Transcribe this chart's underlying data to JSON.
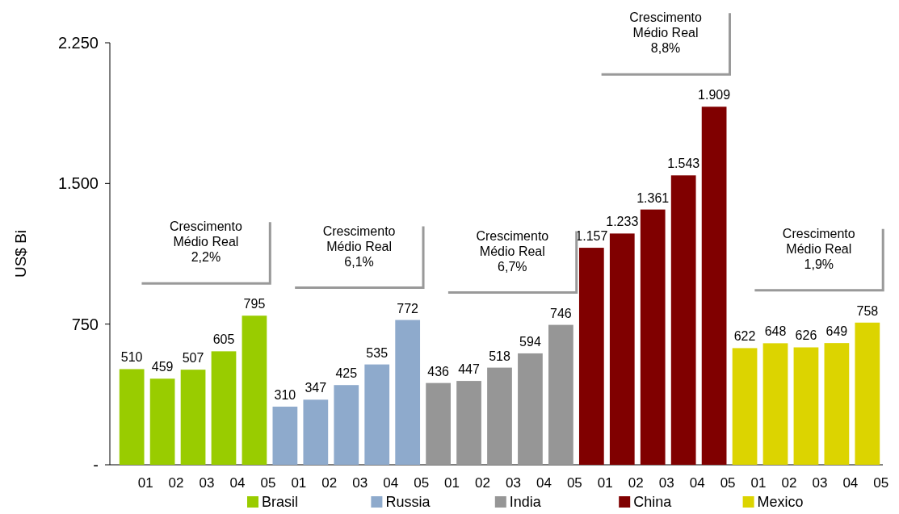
{
  "chart_data": {
    "type": "bar",
    "ylabel": "US$ Bi",
    "categories": [
      "01",
      "02",
      "03",
      "04",
      "05",
      "01",
      "02",
      "03",
      "04",
      "05",
      "01",
      "02",
      "03",
      "04",
      "05",
      "01",
      "02",
      "03",
      "04",
      "05",
      "01",
      "02",
      "03",
      "04",
      "05"
    ],
    "series": [
      {
        "name": "Brasil",
        "color": "#99cc00",
        "values": [
          510,
          459,
          507,
          605,
          795,
          null,
          null,
          null,
          null,
          null,
          null,
          null,
          null,
          null,
          null,
          null,
          null,
          null,
          null,
          null,
          null,
          null,
          null,
          null,
          null
        ],
        "value_labels": [
          "510",
          "459",
          "507",
          "605",
          "795",
          null,
          null,
          null,
          null,
          null,
          null,
          null,
          null,
          null,
          null,
          null,
          null,
          null,
          null,
          null,
          null,
          null,
          null,
          null,
          null
        ]
      },
      {
        "name": "Russia",
        "color": "#8eaacc",
        "values": [
          null,
          null,
          null,
          null,
          null,
          310,
          347,
          425,
          535,
          772,
          null,
          null,
          null,
          null,
          null,
          null,
          null,
          null,
          null,
          null,
          null,
          null,
          null,
          null,
          null
        ],
        "value_labels": [
          null,
          null,
          null,
          null,
          null,
          "310",
          "347",
          "425",
          "535",
          "772",
          null,
          null,
          null,
          null,
          null,
          null,
          null,
          null,
          null,
          null,
          null,
          null,
          null,
          null,
          null
        ]
      },
      {
        "name": "India",
        "color": "#969696",
        "values": [
          null,
          null,
          null,
          null,
          null,
          null,
          null,
          null,
          null,
          null,
          436,
          447,
          518,
          594,
          746,
          null,
          null,
          null,
          null,
          null,
          null,
          null,
          null,
          null,
          null
        ],
        "value_labels": [
          null,
          null,
          null,
          null,
          null,
          null,
          null,
          null,
          null,
          null,
          "436",
          "447",
          "518",
          "594",
          "746",
          null,
          null,
          null,
          null,
          null,
          null,
          null,
          null,
          null,
          null
        ]
      },
      {
        "name": "China",
        "color": "#800000",
        "values": [
          null,
          null,
          null,
          null,
          null,
          null,
          null,
          null,
          null,
          null,
          null,
          null,
          null,
          null,
          null,
          1157,
          1233,
          1361,
          1543,
          1909,
          null,
          null,
          null,
          null,
          null
        ],
        "value_labels": [
          null,
          null,
          null,
          null,
          null,
          null,
          null,
          null,
          null,
          null,
          null,
          null,
          null,
          null,
          null,
          "1.157",
          "1.233",
          "1.361",
          "1.543",
          "1.909",
          null,
          null,
          null,
          null,
          null
        ]
      },
      {
        "name": "Mexico",
        "color": "#dcd400",
        "values": [
          null,
          null,
          null,
          null,
          null,
          null,
          null,
          null,
          null,
          null,
          null,
          null,
          null,
          null,
          null,
          null,
          null,
          null,
          null,
          null,
          622,
          648,
          626,
          649,
          758
        ],
        "value_labels": [
          null,
          null,
          null,
          null,
          null,
          null,
          null,
          null,
          null,
          null,
          null,
          null,
          null,
          null,
          null,
          null,
          null,
          null,
          null,
          null,
          "622",
          "648",
          "626",
          "649",
          "758"
        ]
      }
    ],
    "annotations": [
      "Crescimento\nMédio Real\n2,2%",
      "Crescimento\nMédio Real\n6,1%",
      "Crescimento\nMédio Real\n6,7%",
      "Crescimento\nMédio Real\n8,8%",
      "Crescimento\nMédio Real\n1,9%"
    ],
    "ylim": [
      0,
      2250
    ],
    "yticks": [
      {
        "value": 0,
        "label": "-"
      },
      {
        "value": 750,
        "label": "750"
      },
      {
        "value": 1500,
        "label": "1.500"
      },
      {
        "value": 2250,
        "label": "2.250"
      }
    ],
    "legend": "bottom",
    "grid": false
  }
}
